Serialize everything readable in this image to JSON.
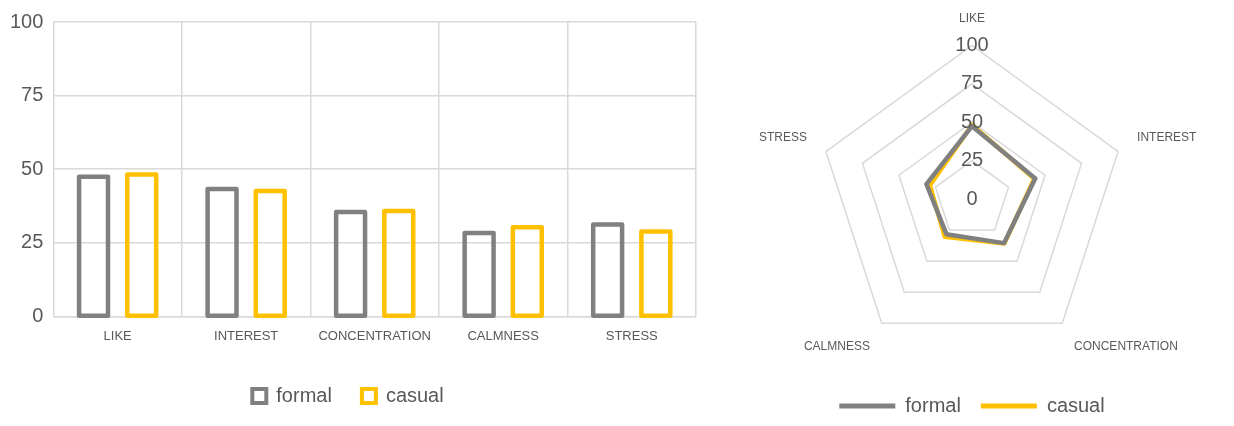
{
  "chart_data": [
    {
      "type": "bar",
      "categories": [
        "LIKE",
        "INTEREST",
        "CONCENTRATION",
        "CALMNESS",
        "STRESS"
      ],
      "series": [
        {
          "name": "formal",
          "color": "#808080",
          "values": [
            47.4,
            43.3,
            35.5,
            28.3,
            31.2
          ]
        },
        {
          "name": "casual",
          "color": "#ffc000",
          "values": [
            48.2,
            42.6,
            35.8,
            30.3,
            28.8
          ]
        }
      ],
      "ylim": [
        0,
        100
      ],
      "yticks": [
        0,
        25,
        50,
        75,
        100
      ],
      "grid": true,
      "legend": "bottom"
    },
    {
      "type": "radar",
      "categories": [
        "LIKE",
        "INTEREST",
        "CONCENTRATION",
        "CALMNESS",
        "STRESS"
      ],
      "series": [
        {
          "name": "formal",
          "color": "#808080",
          "values": [
            47.4,
            43.3,
            35.5,
            28.3,
            31.2
          ]
        },
        {
          "name": "casual",
          "color": "#ffc000",
          "values": [
            48.2,
            42.6,
            35.8,
            30.3,
            28.8
          ]
        }
      ],
      "ylim": [
        0,
        100
      ],
      "yticks": [
        0,
        25,
        50,
        75,
        100
      ],
      "grid": true,
      "legend": "bottom",
      "marker": "none"
    }
  ]
}
